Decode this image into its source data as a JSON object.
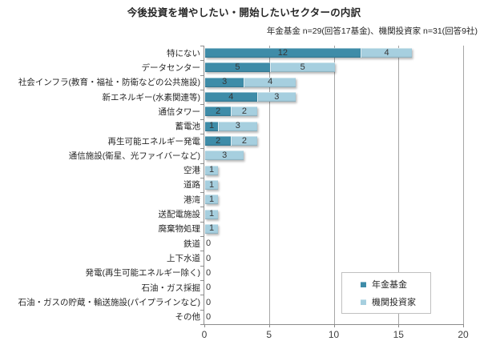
{
  "chart_data": {
    "type": "bar",
    "orientation": "horizontal",
    "stacked": true,
    "title": "今後投資を増やしたい・開始したいセクターの内訳",
    "subtitle": "年金基金 n=29(回答17基金)、機関投資家 n=31(回答9社)",
    "categories": [
      "特にない",
      "データセンター",
      "社会インフラ(教育・福祉・防衛などの公共施設)",
      "新エネルギー(水素関連等)",
      "通信タワー",
      "蓄電池",
      "再生可能エネルギー発電",
      "通信施設(衛星、光ファイバーなど)",
      "空港",
      "道路",
      "港湾",
      "送配電施設",
      "廃棄物処理",
      "鉄道",
      "上下水道",
      "発電(再生可能エネルギー除く)",
      "石油・ガス採掘",
      "石油・ガスの貯蔵・輸送施設(パイプラインなど)",
      "その他"
    ],
    "series": [
      {
        "name": "年金基金",
        "color": "#3E8CA8",
        "values": [
          12,
          5,
          3,
          4,
          2,
          1,
          2,
          0,
          0,
          0,
          0,
          0,
          0,
          0,
          0,
          0,
          0,
          0,
          0
        ]
      },
      {
        "name": "機関投資家",
        "color": "#A6CFDF",
        "values": [
          4,
          5,
          4,
          3,
          2,
          3,
          2,
          3,
          1,
          1,
          1,
          1,
          1,
          0,
          0,
          0,
          0,
          0,
          0
        ]
      }
    ],
    "xlim": [
      0,
      20
    ],
    "xticks": [
      0,
      5,
      10,
      15,
      20
    ],
    "grid": true,
    "legend_position": "inside-right-lower",
    "zero_label": "0"
  },
  "colors": {
    "axis": "#8C8C8C",
    "gridline": "#A6A6A6",
    "legend_border": "#C0C0C0",
    "background": "#FFFFFF",
    "text": "#262626"
  }
}
